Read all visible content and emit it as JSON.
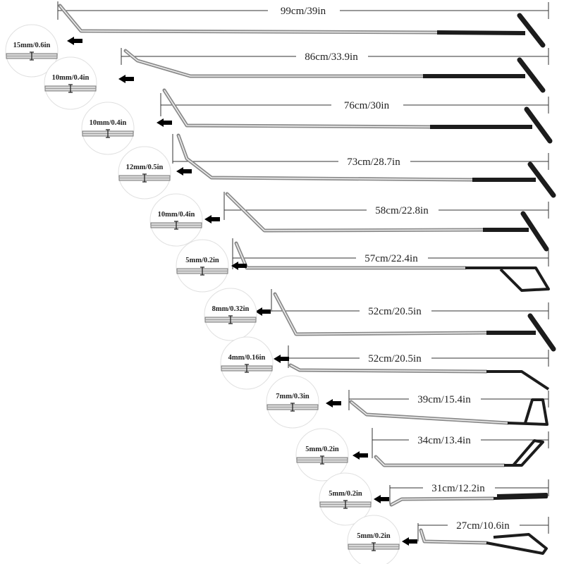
{
  "colors": {
    "rod": "#b8b8b8",
    "rod_highlight": "#eeeeee",
    "handle": "#1c1c1c",
    "dimension_line": "#333333",
    "arrow": "#000000",
    "circle_border": "#e0e0e0"
  },
  "rods": [
    {
      "length": "99cm/39in",
      "tip": "15mm/0.6in",
      "handle": "t-handle"
    },
    {
      "length": "86cm/33.9in",
      "tip": "10mm/0.4in",
      "handle": "t-handle"
    },
    {
      "length": "76cm/30in",
      "tip": "10mm/0.4in",
      "handle": "t-handle"
    },
    {
      "length": "73cm/28.7in",
      "tip": "12mm/0.5in",
      "handle": "t-handle"
    },
    {
      "length": "58cm/22.8in",
      "tip": "10mm/0.4in",
      "handle": "t-handle"
    },
    {
      "length": "57cm/22.4in",
      "tip": "5mm/0.2in",
      "handle": "loop-handle"
    },
    {
      "length": "52cm/20.5in",
      "tip": "8mm/0.32in",
      "handle": "t-handle"
    },
    {
      "length": "52cm/20.5in",
      "tip": "4mm/0.16in",
      "handle": "bent-handle"
    },
    {
      "length": "39cm/15.4in",
      "tip": "7mm/0.3in",
      "handle": "triangle-handle"
    },
    {
      "length": "34cm/13.4in",
      "tip": "5mm/0.2in",
      "handle": "triangle-handle"
    },
    {
      "length": "31cm/12.2in",
      "tip": "5mm/0.2in",
      "handle": "flat-loop-handle"
    },
    {
      "length": "27cm/10.6in",
      "tip": "5mm/0.2in",
      "handle": "loop-handle"
    }
  ]
}
